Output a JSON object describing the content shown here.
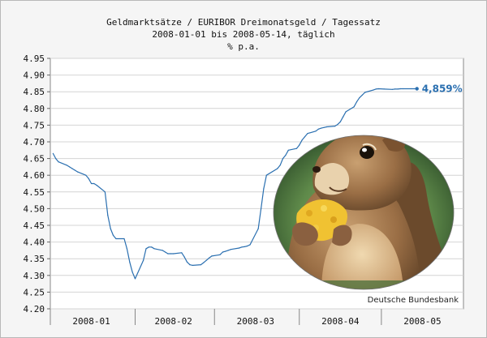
{
  "chart_data": {
    "type": "line",
    "title": "Geldmarktsätze / EURIBOR Dreimonatsgeld / Tagessatz",
    "subtitle": "2008-01-01 bis 2008-05-14, täglich",
    "ylabel": "% p.a.",
    "xlabel": "",
    "ylim": [
      4.2,
      4.95
    ],
    "y_ticks": [
      "4.95",
      "4.90",
      "4.85",
      "4.80",
      "4.75",
      "4.70",
      "4.65",
      "4.60",
      "4.55",
      "4.50",
      "4.45",
      "4.40",
      "4.35",
      "4.30",
      "4.25",
      "4.20"
    ],
    "x_range": [
      "2008-01-01",
      "2008-05-31"
    ],
    "x_tick_labels": [
      {
        "label": "2008-01",
        "center": "2008-01-16"
      },
      {
        "label": "2008-02",
        "center": "2008-02-15"
      },
      {
        "label": "2008-03",
        "center": "2008-03-16"
      },
      {
        "label": "2008-04",
        "center": "2008-04-16"
      },
      {
        "label": "2008-05",
        "center": "2008-05-16"
      }
    ],
    "x_separators": [
      "2008-02-01",
      "2008-03-01",
      "2008-04-01",
      "2008-05-01"
    ],
    "grid": true,
    "line_color": "#2a6fb0",
    "series": [
      {
        "name": "",
        "points": [
          [
            "2008-01-02",
            4.665
          ],
          [
            "2008-01-03",
            4.65
          ],
          [
            "2008-01-04",
            4.64
          ],
          [
            "2008-01-07",
            4.63
          ],
          [
            "2008-01-08",
            4.625
          ],
          [
            "2008-01-09",
            4.62
          ],
          [
            "2008-01-10",
            4.615
          ],
          [
            "2008-01-11",
            4.61
          ],
          [
            "2008-01-14",
            4.6
          ],
          [
            "2008-01-15",
            4.59
          ],
          [
            "2008-01-16",
            4.575
          ],
          [
            "2008-01-17",
            4.575
          ],
          [
            "2008-01-18",
            4.57
          ],
          [
            "2008-01-21",
            4.55
          ],
          [
            "2008-01-22",
            4.48
          ],
          [
            "2008-01-23",
            4.44
          ],
          [
            "2008-01-24",
            4.42
          ],
          [
            "2008-01-25",
            4.41
          ],
          [
            "2008-01-28",
            4.41
          ],
          [
            "2008-01-29",
            4.38
          ],
          [
            "2008-01-30",
            4.34
          ],
          [
            "2008-01-31",
            4.31
          ],
          [
            "2008-02-01",
            4.29
          ],
          [
            "2008-02-04",
            4.345
          ],
          [
            "2008-02-05",
            4.38
          ],
          [
            "2008-02-06",
            4.385
          ],
          [
            "2008-02-07",
            4.385
          ],
          [
            "2008-02-08",
            4.38
          ],
          [
            "2008-02-11",
            4.375
          ],
          [
            "2008-02-12",
            4.37
          ],
          [
            "2008-02-13",
            4.365
          ],
          [
            "2008-02-14",
            4.365
          ],
          [
            "2008-02-15",
            4.365
          ],
          [
            "2008-02-18",
            4.368
          ],
          [
            "2008-02-19",
            4.355
          ],
          [
            "2008-02-20",
            4.34
          ],
          [
            "2008-02-21",
            4.332
          ],
          [
            "2008-02-22",
            4.33
          ],
          [
            "2008-02-25",
            4.332
          ],
          [
            "2008-02-26",
            4.338
          ],
          [
            "2008-02-27",
            4.345
          ],
          [
            "2008-02-28",
            4.352
          ],
          [
            "2008-02-29",
            4.358
          ],
          [
            "2008-03-03",
            4.362
          ],
          [
            "2008-03-04",
            4.37
          ],
          [
            "2008-03-05",
            4.372
          ],
          [
            "2008-03-06",
            4.375
          ],
          [
            "2008-03-07",
            4.378
          ],
          [
            "2008-03-10",
            4.382
          ],
          [
            "2008-03-11",
            4.385
          ],
          [
            "2008-03-12",
            4.386
          ],
          [
            "2008-03-13",
            4.388
          ],
          [
            "2008-03-14",
            4.392
          ],
          [
            "2008-03-17",
            4.44
          ],
          [
            "2008-03-18",
            4.5
          ],
          [
            "2008-03-19",
            4.56
          ],
          [
            "2008-03-20",
            4.6
          ],
          [
            "2008-03-24",
            4.62
          ],
          [
            "2008-03-25",
            4.63
          ],
          [
            "2008-03-26",
            4.65
          ],
          [
            "2008-03-27",
            4.66
          ],
          [
            "2008-03-28",
            4.675
          ],
          [
            "2008-03-31",
            4.68
          ],
          [
            "2008-04-01",
            4.69
          ],
          [
            "2008-04-02",
            4.705
          ],
          [
            "2008-04-03",
            4.715
          ],
          [
            "2008-04-04",
            4.725
          ],
          [
            "2008-04-07",
            4.732
          ],
          [
            "2008-04-08",
            4.738
          ],
          [
            "2008-04-09",
            4.741
          ],
          [
            "2008-04-10",
            4.743
          ],
          [
            "2008-04-11",
            4.745
          ],
          [
            "2008-04-14",
            4.747
          ],
          [
            "2008-04-15",
            4.752
          ],
          [
            "2008-04-16",
            4.76
          ],
          [
            "2008-04-17",
            4.775
          ],
          [
            "2008-04-18",
            4.79
          ],
          [
            "2008-04-21",
            4.805
          ],
          [
            "2008-04-22",
            4.82
          ],
          [
            "2008-04-23",
            4.832
          ],
          [
            "2008-04-24",
            4.84
          ],
          [
            "2008-04-25",
            4.848
          ],
          [
            "2008-04-28",
            4.855
          ],
          [
            "2008-04-29",
            4.858
          ],
          [
            "2008-04-30",
            4.859
          ],
          [
            "2008-05-02",
            4.858
          ],
          [
            "2008-05-05",
            4.857
          ],
          [
            "2008-05-06",
            4.858
          ],
          [
            "2008-05-07",
            4.858
          ],
          [
            "2008-05-08",
            4.859
          ],
          [
            "2008-05-09",
            4.859
          ],
          [
            "2008-05-12",
            4.859
          ],
          [
            "2008-05-13",
            4.859
          ],
          [
            "2008-05-14",
            4.859
          ]
        ]
      }
    ],
    "annotations": [
      {
        "label": "4,859%",
        "x": "2008-05-14",
        "y": 4.859,
        "color": "#2a6fb0"
      }
    ],
    "photo_caption": "Deutsche Bundesbank"
  }
}
